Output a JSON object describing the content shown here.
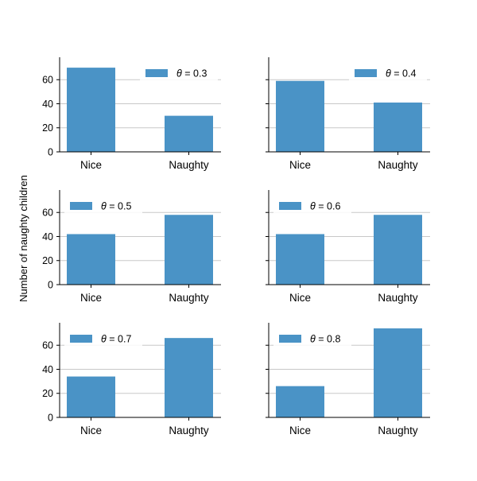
{
  "figure": {
    "ylabel": "Number of naughty children",
    "shared_y": true
  },
  "chart_data": [
    {
      "type": "bar",
      "categories": [
        "Nice",
        "Naughty"
      ],
      "values": [
        70,
        30
      ],
      "legend": {
        "label": "θ = 0.3",
        "symbol": "θ",
        "rest": " = 0.3",
        "loc": "upper right"
      },
      "ylim": [
        0,
        78
      ],
      "yticks": [
        "0",
        "20",
        "40",
        "60"
      ],
      "grid": "y",
      "color": "#4a93c6"
    },
    {
      "type": "bar",
      "categories": [
        "Nice",
        "Naughty"
      ],
      "values": [
        59,
        41
      ],
      "legend": {
        "label": "θ = 0.4",
        "symbol": "θ",
        "rest": " = 0.4",
        "loc": "upper right"
      },
      "ylim": [
        0,
        78
      ],
      "yticks": [],
      "grid": "y",
      "color": "#4a93c6"
    },
    {
      "type": "bar",
      "categories": [
        "Nice",
        "Naughty"
      ],
      "values": [
        42,
        58
      ],
      "legend": {
        "label": "θ = 0.5",
        "symbol": "θ",
        "rest": " = 0.5",
        "loc": "upper left"
      },
      "ylim": [
        0,
        78
      ],
      "yticks": [
        "0",
        "20",
        "40",
        "60"
      ],
      "grid": "y",
      "color": "#4a93c6"
    },
    {
      "type": "bar",
      "categories": [
        "Nice",
        "Naughty"
      ],
      "values": [
        42,
        58
      ],
      "legend": {
        "label": "θ = 0.6",
        "symbol": "θ",
        "rest": " = 0.6",
        "loc": "upper left"
      },
      "ylim": [
        0,
        78
      ],
      "yticks": [],
      "grid": "y",
      "color": "#4a93c6"
    },
    {
      "type": "bar",
      "categories": [
        "Nice",
        "Naughty"
      ],
      "values": [
        34,
        66
      ],
      "legend": {
        "label": "θ = 0.7",
        "symbol": "θ",
        "rest": " = 0.7",
        "loc": "upper left"
      },
      "ylim": [
        0,
        78
      ],
      "yticks": [
        "0",
        "20",
        "40",
        "60"
      ],
      "grid": "y",
      "color": "#4a93c6"
    },
    {
      "type": "bar",
      "categories": [
        "Nice",
        "Naughty"
      ],
      "values": [
        26,
        74
      ],
      "legend": {
        "label": "θ = 0.8",
        "symbol": "θ",
        "rest": " = 0.8",
        "loc": "upper left"
      },
      "ylim": [
        0,
        78
      ],
      "yticks": [],
      "grid": "y",
      "color": "#4a93c6"
    }
  ]
}
